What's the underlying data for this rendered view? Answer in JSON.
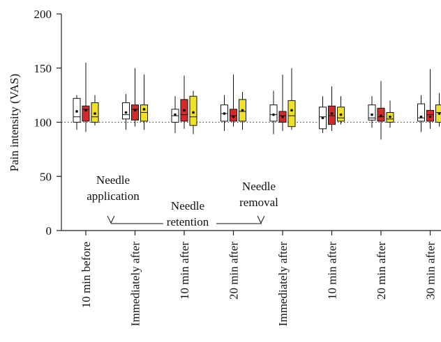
{
  "chart_data": {
    "type": "box",
    "ylabel": "Pain intensity (VAS)",
    "ylim": [
      0,
      200
    ],
    "yticks": [
      "0",
      "50",
      "100",
      "150",
      "200"
    ],
    "reference_line": 100,
    "categories": [
      "10 min before",
      "Immediately after",
      "10 min after",
      "20 min after",
      "Immediately after",
      "10 min after",
      "20 min after",
      "30 min after"
    ],
    "series": [
      {
        "color": "#ffffff",
        "values": [
          {
            "min": 93,
            "q1": 100,
            "median": 105,
            "q3": 122,
            "max": 125,
            "mean": 110
          },
          {
            "min": 93,
            "q1": 103,
            "median": 107,
            "q3": 118,
            "max": 126,
            "mean": 109
          },
          {
            "min": 90,
            "q1": 100,
            "median": 106,
            "q3": 112,
            "max": 124,
            "mean": 107
          },
          {
            "min": 92,
            "q1": 101,
            "median": 108,
            "q3": 116,
            "max": 125,
            "mean": 108
          },
          {
            "min": 89,
            "q1": 101,
            "median": 107,
            "q3": 116,
            "max": 129,
            "mean": 107
          },
          {
            "min": 90,
            "q1": 94,
            "median": 105,
            "q3": 114,
            "max": 124,
            "mean": 104
          },
          {
            "min": 95,
            "q1": 102,
            "median": 104,
            "q3": 116,
            "max": 124,
            "mean": 107
          },
          {
            "min": 91,
            "q1": 101,
            "median": 104,
            "q3": 117,
            "max": 125,
            "mean": 105
          }
        ]
      },
      {
        "color": "#d42a2a",
        "values": [
          {
            "min": 91,
            "q1": 101,
            "median": 112,
            "q3": 115,
            "max": 155,
            "mean": 111
          },
          {
            "min": 96,
            "q1": 102,
            "median": 112,
            "q3": 116,
            "max": 150,
            "mean": 111
          },
          {
            "min": 94,
            "q1": 101,
            "median": 107,
            "q3": 121,
            "max": 143,
            "mean": 111
          },
          {
            "min": 96,
            "q1": 101,
            "median": 106,
            "q3": 112,
            "max": 144,
            "mean": 105
          },
          {
            "min": 92,
            "q1": 100,
            "median": 106,
            "q3": 110,
            "max": 144,
            "mean": 105
          },
          {
            "min": 92,
            "q1": 98,
            "median": 106,
            "q3": 115,
            "max": 133,
            "mean": 108
          },
          {
            "min": 84,
            "q1": 101,
            "median": 105,
            "q3": 113,
            "max": 138,
            "mean": 106
          },
          {
            "min": 94,
            "q1": 101,
            "median": 107,
            "q3": 111,
            "max": 149,
            "mean": 105
          }
        ]
      },
      {
        "color": "#efe12a",
        "values": [
          {
            "min": 97,
            "q1": 100,
            "median": 105,
            "q3": 118,
            "max": 125,
            "mean": 108
          },
          {
            "min": 93,
            "q1": 101,
            "median": 109,
            "q3": 116,
            "max": 144,
            "mean": 112
          },
          {
            "min": 89,
            "q1": 97,
            "median": 105,
            "q3": 124,
            "max": 129,
            "mean": 109
          },
          {
            "min": 93,
            "q1": 101,
            "median": 110,
            "q3": 121,
            "max": 128,
            "mean": 111
          },
          {
            "min": 93,
            "q1": 96,
            "median": 106,
            "q3": 120,
            "max": 150,
            "mean": 111
          },
          {
            "min": 98,
            "q1": 101,
            "median": 104,
            "q3": 114,
            "max": 124,
            "mean": 107
          },
          {
            "min": 95,
            "q1": 100,
            "median": 103,
            "q3": 109,
            "max": 120,
            "mean": 105
          },
          {
            "min": 96,
            "q1": 100,
            "median": 109,
            "q3": 116,
            "max": 127,
            "mean": 108
          }
        ]
      }
    ],
    "grid": false,
    "annotations": [
      {
        "text": [
          "Needle",
          "application"
        ]
      },
      {
        "text": [
          "Needle",
          "retention"
        ]
      },
      {
        "text": [
          "Needle",
          "removal"
        ]
      }
    ]
  }
}
